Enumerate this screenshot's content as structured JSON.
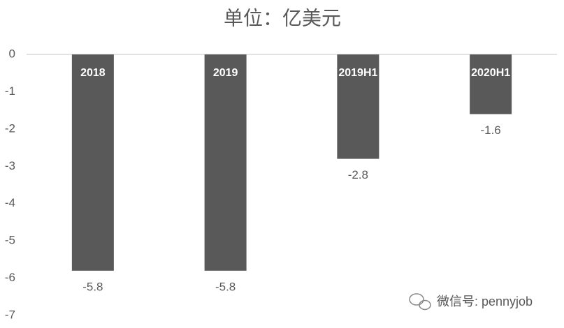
{
  "chart_data": {
    "type": "bar",
    "title": "单位：亿美元",
    "categories": [
      "2018",
      "2019",
      "2019H1",
      "2020H1"
    ],
    "values": [
      -5.8,
      -5.8,
      -2.8,
      -1.6
    ],
    "color": "#595959",
    "ylim": [
      -7,
      0
    ],
    "yticks": [
      0,
      -1,
      -2,
      -3,
      -4,
      -5,
      -6,
      -7
    ],
    "annotation": "微信号: pennyjob"
  }
}
